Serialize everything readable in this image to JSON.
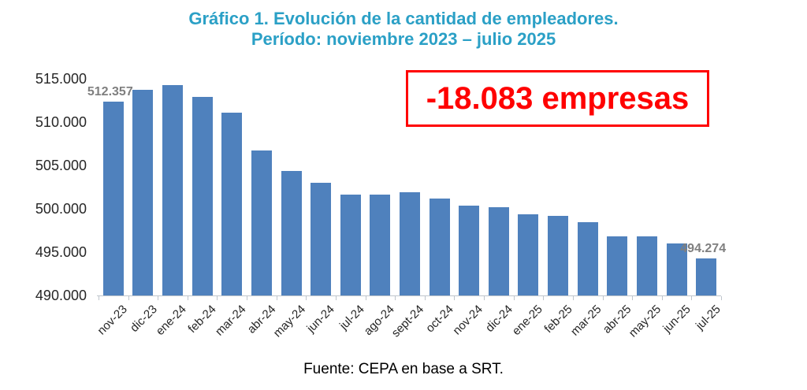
{
  "title": {
    "line1": "Gráfico 1. Evolución de la cantidad de empleadores.",
    "line2": "Período: noviembre 2023 – julio 2025",
    "color": "#2ba0c6"
  },
  "annotation_box": {
    "text": "-18.083 empresas",
    "border_color": "#ff0000",
    "text_color": "#ff0000"
  },
  "footer": {
    "text": "Fuente: CEPA en base a SRT."
  },
  "colors": {
    "bar": "#4f81bd",
    "axis": "#bfc5cc",
    "point_label": "#7f7f7f",
    "tick_text": "#262626"
  },
  "chart_data": {
    "type": "bar",
    "title": "Gráfico 1. Evolución de la cantidad de empleadores.",
    "subtitle": "Período: noviembre 2023 – julio 2025",
    "categories": [
      "nov-23",
      "dic-23",
      "ene-24",
      "feb-24",
      "mar-24",
      "abr-24",
      "may-24",
      "jun-24",
      "jul-24",
      "ago-24",
      "sept-24",
      "oct-24",
      "nov-24",
      "dic-24",
      "ene-25",
      "feb-25",
      "mar-25",
      "abr-25",
      "may-25",
      "jun-25",
      "jul-25"
    ],
    "values": [
      512357,
      513700,
      514300,
      512900,
      511100,
      506700,
      504400,
      503000,
      501600,
      501600,
      501900,
      501200,
      500400,
      500200,
      499400,
      499200,
      498500,
      496800,
      496800,
      496000,
      494274
    ],
    "point_labels": {
      "0": "512.357",
      "20": "494.274"
    },
    "annotation": "-18.083 empresas",
    "xlabel": "",
    "ylabel": "",
    "ylim": [
      490000,
      515000
    ],
    "ytick_values": [
      490000,
      495000,
      500000,
      505000,
      510000,
      515000
    ],
    "ytick_labels": [
      "490.000",
      "495.000",
      "500.000",
      "505.000",
      "510.000",
      "515.000"
    ],
    "grid": false,
    "legend": "none",
    "bar_color": "#4f81bd"
  }
}
